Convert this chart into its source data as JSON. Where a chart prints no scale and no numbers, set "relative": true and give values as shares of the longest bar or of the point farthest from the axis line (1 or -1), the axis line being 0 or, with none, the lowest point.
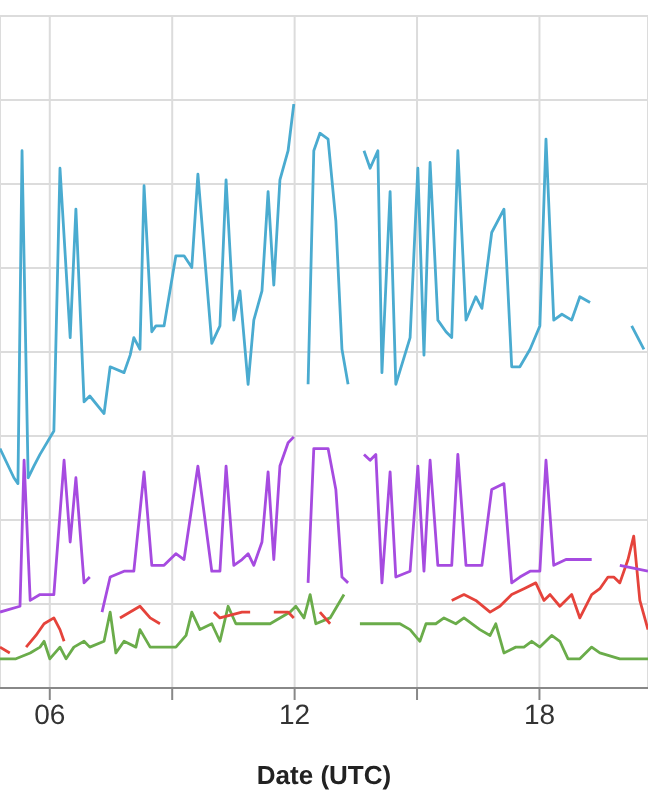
{
  "chart_data": {
    "type": "line",
    "xlabel": "Date (UTC)",
    "relative": true,
    "grid": true,
    "line_style": "solid",
    "xlim": [
      4.78,
      20.66
    ],
    "xticks": [
      {
        "value": 6,
        "label": "06"
      },
      {
        "value": 9,
        "label": null
      },
      {
        "value": 12,
        "label": "12"
      },
      {
        "value": 15,
        "label": null
      },
      {
        "value": 18,
        "label": "18"
      }
    ],
    "series": [
      {
        "color": "#4aabd0",
        "x": [
          4.78,
          5.12,
          5.22,
          5.32,
          5.47,
          5.61,
          5.76,
          6.1,
          6.25,
          6.5,
          6.64,
          6.84,
          6.98,
          7.33,
          7.48,
          7.82,
          7.97,
          8.06,
          8.21,
          8.31,
          8.5,
          8.6,
          8.8,
          9.09,
          9.29,
          9.48,
          9.63,
          9.97,
          10.17,
          10.32,
          10.51,
          10.66,
          10.86,
          11.0,
          11.2,
          11.35,
          11.49,
          11.64,
          11.84,
          11.98,
          12.13,
          12.33,
          12.47,
          12.62,
          12.82,
          13.01,
          13.16,
          13.31,
          13.5,
          13.7,
          13.85,
          14.04,
          14.14,
          14.34,
          14.48,
          14.83,
          15.02,
          15.17,
          15.32,
          15.51,
          15.71,
          15.85,
          16.0,
          16.2,
          16.44,
          16.59,
          16.83,
          17.13,
          17.32,
          17.52,
          17.77,
          18.01,
          18.16,
          18.35,
          18.55,
          18.79,
          18.99,
          19.24,
          19.63,
          20.26,
          20.56
        ],
        "values": [
          0.41,
          0.36,
          0.35,
          0.92,
          0.36,
          0.38,
          0.4,
          0.44,
          0.89,
          0.6,
          0.82,
          0.49,
          0.5,
          0.47,
          0.55,
          0.54,
          0.57,
          0.6,
          0.58,
          0.86,
          0.61,
          0.62,
          0.62,
          0.74,
          0.74,
          0.72,
          0.88,
          0.59,
          0.62,
          0.87,
          0.63,
          0.68,
          0.52,
          0.63,
          0.68,
          0.85,
          0.69,
          0.87,
          0.92,
          1.0,
          null,
          0.52,
          0.92,
          0.95,
          0.94,
          0.8,
          0.58,
          0.52,
          null,
          0.92,
          0.89,
          0.92,
          0.54,
          0.85,
          0.52,
          0.6,
          0.89,
          0.57,
          0.9,
          0.63,
          0.61,
          0.6,
          0.92,
          0.63,
          0.67,
          0.65,
          0.78,
          0.82,
          0.55,
          0.55,
          0.58,
          0.62,
          0.94,
          0.63,
          0.64,
          0.63,
          0.67,
          0.66,
          null,
          0.62,
          0.58
        ]
      },
      {
        "color": "#a64be0",
        "x": [
          4.78,
          5.27,
          5.37,
          5.52,
          5.76,
          6.1,
          6.35,
          6.5,
          6.64,
          6.84,
          6.98,
          7.13,
          7.28,
          7.48,
          7.82,
          8.06,
          8.31,
          8.5,
          8.8,
          9.09,
          9.29,
          9.63,
          9.97,
          10.17,
          10.32,
          10.51,
          10.71,
          10.86,
          11.0,
          11.2,
          11.35,
          11.49,
          11.64,
          11.84,
          11.98,
          12.13,
          12.33,
          12.47,
          12.62,
          12.82,
          13.01,
          13.16,
          13.31,
          13.5,
          13.7,
          13.85,
          13.99,
          14.14,
          14.34,
          14.48,
          14.83,
          15.02,
          15.17,
          15.32,
          15.51,
          15.71,
          15.85,
          16.0,
          16.2,
          16.44,
          16.59,
          16.83,
          17.13,
          17.32,
          17.52,
          17.77,
          18.01,
          18.16,
          18.35,
          18.65,
          18.99,
          19.28,
          19.63,
          19.97,
          20.66
        ],
        "values": [
          0.13,
          0.14,
          0.39,
          0.15,
          0.16,
          0.16,
          0.39,
          0.25,
          0.36,
          0.18,
          0.19,
          null,
          0.13,
          0.19,
          0.2,
          0.2,
          0.37,
          0.21,
          0.21,
          0.23,
          0.22,
          0.38,
          0.2,
          0.2,
          0.38,
          0.21,
          0.22,
          0.23,
          0.21,
          0.25,
          0.37,
          0.22,
          0.38,
          0.42,
          0.43,
          null,
          0.18,
          0.41,
          0.41,
          0.41,
          0.34,
          0.19,
          0.18,
          null,
          0.4,
          0.39,
          0.4,
          0.18,
          0.37,
          0.19,
          0.2,
          0.38,
          0.2,
          0.39,
          0.21,
          0.21,
          0.21,
          0.4,
          0.21,
          0.21,
          0.21,
          0.34,
          0.35,
          0.18,
          0.19,
          0.2,
          0.2,
          0.39,
          0.21,
          0.22,
          0.22,
          0.22,
          null,
          0.21,
          0.2
        ]
      },
      {
        "color": "#e5433b",
        "x": [
          4.78,
          5.02,
          5.22,
          5.42,
          5.66,
          5.86,
          6.1,
          6.25,
          6.35,
          6.98,
          7.72,
          7.97,
          8.21,
          8.46,
          8.7,
          9.34,
          10.02,
          10.17,
          10.71,
          10.91,
          11.15,
          11.49,
          11.84,
          11.98,
          12.23,
          12.62,
          12.87,
          14.58,
          15.85,
          16.15,
          16.44,
          16.79,
          17.03,
          17.32,
          17.62,
          17.91,
          18.11,
          18.26,
          18.5,
          18.79,
          18.99,
          19.28,
          19.48,
          19.68,
          19.82,
          19.97,
          20.17,
          20.31,
          20.46,
          20.66
        ],
        "values": [
          0.07,
          0.06,
          null,
          0.07,
          0.09,
          0.11,
          0.12,
          0.1,
          0.08,
          null,
          0.12,
          0.13,
          0.14,
          0.12,
          0.11,
          null,
          0.13,
          0.12,
          0.13,
          0.13,
          null,
          0.13,
          0.13,
          0.12,
          null,
          0.13,
          0.11,
          null,
          0.15,
          0.16,
          0.15,
          0.13,
          0.14,
          0.16,
          0.17,
          0.18,
          0.15,
          0.16,
          0.14,
          0.16,
          0.12,
          0.16,
          0.17,
          0.19,
          0.19,
          0.18,
          0.22,
          0.26,
          0.15,
          0.1
        ]
      },
      {
        "color": "#6aac4a",
        "x": [
          4.78,
          5.17,
          5.52,
          5.76,
          5.86,
          6.0,
          6.25,
          6.4,
          6.59,
          6.84,
          6.98,
          7.33,
          7.48,
          7.62,
          7.82,
          8.11,
          8.21,
          8.46,
          8.8,
          9.09,
          9.34,
          9.48,
          9.68,
          9.97,
          10.17,
          10.37,
          10.56,
          10.91,
          11.4,
          11.89,
          12.03,
          12.23,
          12.38,
          12.52,
          12.87,
          13.21,
          13.4,
          13.6,
          14.09,
          14.58,
          14.83,
          15.07,
          15.22,
          15.46,
          15.66,
          15.95,
          16.15,
          16.54,
          16.79,
          16.93,
          17.13,
          17.42,
          17.62,
          17.81,
          18.01,
          18.3,
          18.5,
          18.7,
          18.99,
          19.28,
          19.48,
          19.97,
          20.66
        ],
        "values": [
          0.05,
          0.05,
          0.06,
          0.07,
          0.08,
          0.05,
          0.07,
          0.05,
          0.07,
          0.08,
          0.07,
          0.08,
          0.13,
          0.06,
          0.08,
          0.07,
          0.1,
          0.07,
          0.07,
          0.07,
          0.09,
          0.13,
          0.1,
          0.11,
          0.08,
          0.14,
          0.11,
          0.11,
          0.11,
          0.13,
          0.14,
          0.12,
          0.16,
          0.11,
          0.12,
          0.16,
          null,
          0.11,
          0.11,
          0.11,
          0.1,
          0.08,
          0.11,
          0.11,
          0.12,
          0.11,
          0.12,
          0.1,
          0.09,
          0.11,
          0.06,
          0.07,
          0.07,
          0.08,
          0.07,
          0.09,
          0.08,
          0.05,
          0.05,
          0.07,
          0.06,
          0.05,
          0.05
        ]
      }
    ]
  }
}
